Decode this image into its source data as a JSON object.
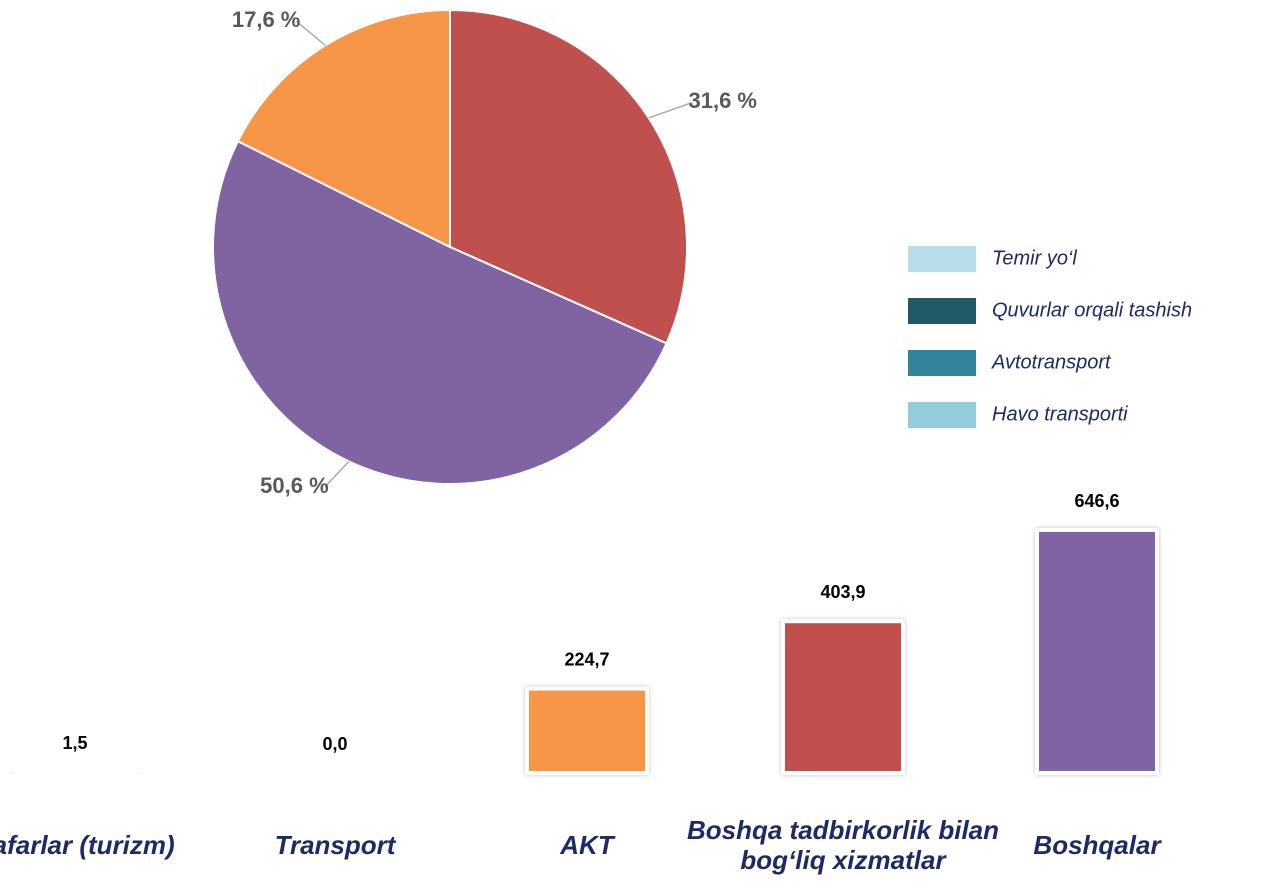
{
  "chart_data": [
    {
      "type": "pie",
      "categories": [
        "",
        "",
        ""
      ],
      "values": [
        31.6,
        50.6,
        17.6
      ],
      "value_labels": [
        "31,6 %",
        "50,6 %",
        "17,6 %"
      ],
      "colors": [
        "#c0504d",
        "#8064a2",
        "#f79646"
      ],
      "legend": [
        {
          "name": "Temir yo‘l",
          "color": "#b7dde8"
        },
        {
          "name": "Quvurlar orqali tashish",
          "color": "#215968"
        },
        {
          "name": "Avtotransport",
          "color": "#31849b"
        },
        {
          "name": "Havo transporti",
          "color": "#93cddd"
        }
      ]
    },
    {
      "type": "bar",
      "categories": [
        "Safarlar (turizm)",
        "Transport",
        "AKT",
        "Boshqa tadbirkorlik bilan bog‘liq xizmatlar",
        "Boshqalar"
      ],
      "values": [
        1.5,
        0.0,
        224.7,
        403.9,
        646.6
      ],
      "value_labels": [
        "1,5",
        "0,0",
        "224,7",
        "403,9",
        "646,6"
      ],
      "colors": [
        "#ffffff",
        "#ffffff",
        "#f79646",
        "#c0504d",
        "#8064a2"
      ]
    }
  ]
}
